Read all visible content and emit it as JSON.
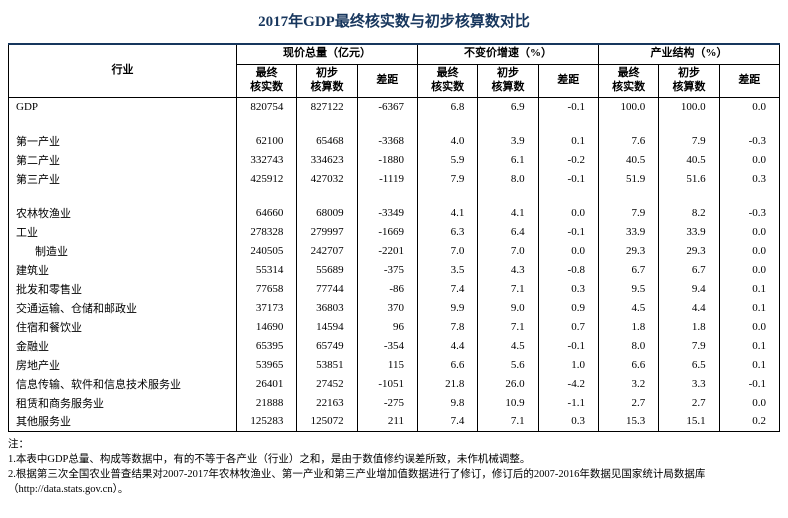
{
  "title": "2017年GDP最终核实数与初步核算数对比",
  "table": {
    "col_industry": "行业",
    "groups": [
      {
        "label": "现价总量（亿元）"
      },
      {
        "label": "不变价增速（%）"
      },
      {
        "label": "产业结构（%）"
      }
    ],
    "subheaders": [
      "最终\n核实数",
      "初步\n核算数",
      "差距"
    ],
    "rows": [
      {
        "industry": "GDP",
        "values": [
          "820754",
          "827122",
          "-6367",
          "6.8",
          "6.9",
          "-0.1",
          "100.0",
          "100.0",
          "0.0"
        ]
      },
      {
        "blank": true
      },
      {
        "industry": "第一产业",
        "values": [
          "62100",
          "65468",
          "-3368",
          "4.0",
          "3.9",
          "0.1",
          "7.6",
          "7.9",
          "-0.3"
        ]
      },
      {
        "industry": "第二产业",
        "values": [
          "332743",
          "334623",
          "-1880",
          "5.9",
          "6.1",
          "-0.2",
          "40.5",
          "40.5",
          "0.0"
        ]
      },
      {
        "industry": "第三产业",
        "values": [
          "425912",
          "427032",
          "-1119",
          "7.9",
          "8.0",
          "-0.1",
          "51.9",
          "51.6",
          "0.3"
        ]
      },
      {
        "blank": true
      },
      {
        "industry": "农林牧渔业",
        "values": [
          "64660",
          "68009",
          "-3349",
          "4.1",
          "4.1",
          "0.0",
          "7.9",
          "8.2",
          "-0.3"
        ]
      },
      {
        "industry": "工业",
        "values": [
          "278328",
          "279997",
          "-1669",
          "6.3",
          "6.4",
          "-0.1",
          "33.9",
          "33.9",
          "0.0"
        ]
      },
      {
        "industry": "制造业",
        "indent": true,
        "values": [
          "240505",
          "242707",
          "-2201",
          "7.0",
          "7.0",
          "0.0",
          "29.3",
          "29.3",
          "0.0"
        ]
      },
      {
        "industry": "建筑业",
        "values": [
          "55314",
          "55689",
          "-375",
          "3.5",
          "4.3",
          "-0.8",
          "6.7",
          "6.7",
          "0.0"
        ]
      },
      {
        "industry": "批发和零售业",
        "values": [
          "77658",
          "77744",
          "-86",
          "7.4",
          "7.1",
          "0.3",
          "9.5",
          "9.4",
          "0.1"
        ]
      },
      {
        "industry": "交通运输、仓储和邮政业",
        "values": [
          "37173",
          "36803",
          "370",
          "9.9",
          "9.0",
          "0.9",
          "4.5",
          "4.4",
          "0.1"
        ]
      },
      {
        "industry": "住宿和餐饮业",
        "values": [
          "14690",
          "14594",
          "96",
          "7.8",
          "7.1",
          "0.7",
          "1.8",
          "1.8",
          "0.0"
        ]
      },
      {
        "industry": "金融业",
        "values": [
          "65395",
          "65749",
          "-354",
          "4.4",
          "4.5",
          "-0.1",
          "8.0",
          "7.9",
          "0.1"
        ]
      },
      {
        "industry": "房地产业",
        "values": [
          "53965",
          "53851",
          "115",
          "6.6",
          "5.6",
          "1.0",
          "6.6",
          "6.5",
          "0.1"
        ]
      },
      {
        "industry": "信息传输、软件和信息技术服务业",
        "values": [
          "26401",
          "27452",
          "-1051",
          "21.8",
          "26.0",
          "-4.2",
          "3.2",
          "3.3",
          "-0.1"
        ]
      },
      {
        "industry": "租赁和商务服务业",
        "values": [
          "21888",
          "22163",
          "-275",
          "9.8",
          "10.9",
          "-1.1",
          "2.7",
          "2.7",
          "0.0"
        ]
      },
      {
        "industry": "其他服务业",
        "values": [
          "125283",
          "125072",
          "211",
          "7.4",
          "7.1",
          "0.3",
          "15.3",
          "15.1",
          "0.2"
        ]
      }
    ]
  },
  "notes": {
    "label": "注：",
    "items": [
      "1.本表中GDP总量、构成等数据中，有的不等于各产业（行业）之和，是由于数值修约误差所致，未作机械调整。",
      "2.根据第三次全国农业普查结果对2007-2017年农林牧渔业、第一产业和第三产业增加值数据进行了修订，修订后的2007-2016年数据见国家统计局数据库（http://data.stats.gov.cn）。"
    ]
  }
}
